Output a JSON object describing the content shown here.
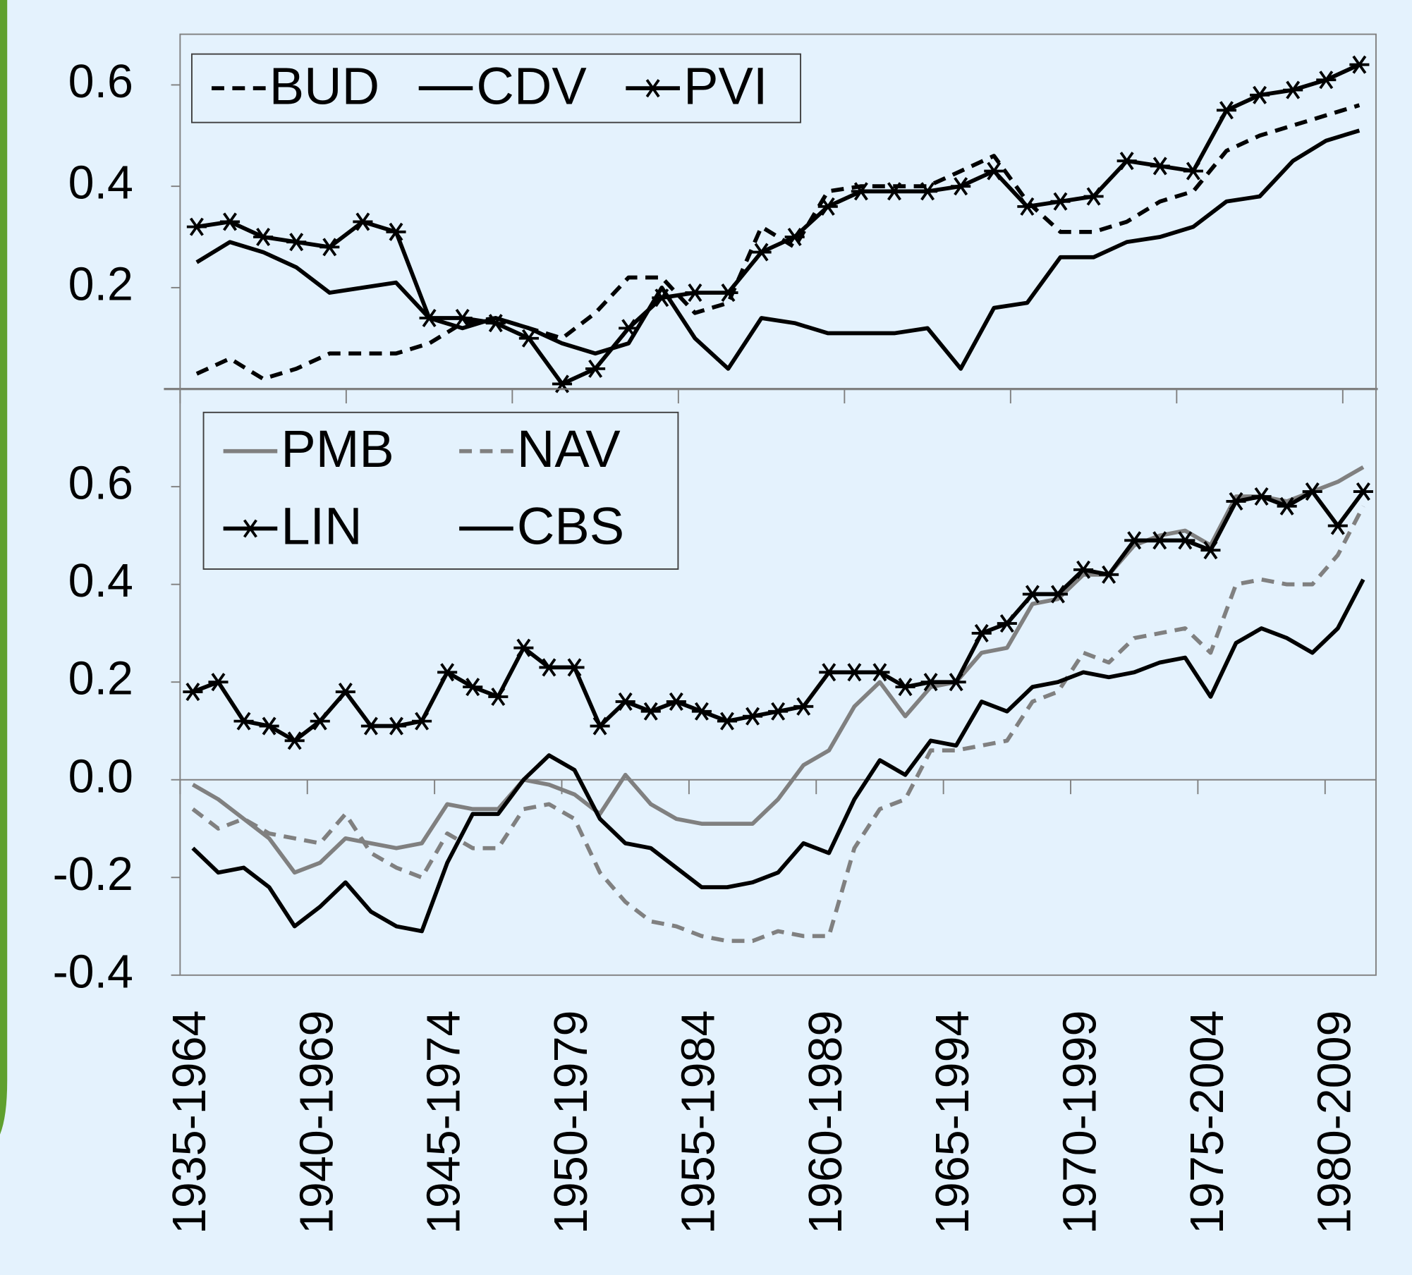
{
  "chart_data": [
    {
      "type": "line",
      "categories": [
        null,
        null,
        null,
        null,
        null,
        null,
        null,
        null,
        null,
        null,
        null,
        null,
        null,
        null,
        null,
        null,
        null,
        null,
        null,
        null,
        null,
        null,
        null,
        null,
        null,
        null,
        null,
        null,
        null,
        null,
        null,
        null,
        null,
        null,
        null,
        null
      ],
      "ylim": [
        0,
        0.7
      ],
      "yticks": [
        0.2,
        0.4,
        0.6
      ],
      "legend": "upper left",
      "series": [
        {
          "name": "BUD",
          "color": "#000000",
          "dash": "dashed",
          "marker": "none",
          "values": [
            0.03,
            0.06,
            0.02,
            0.04,
            0.07,
            0.07,
            0.07,
            0.09,
            0.13,
            0.14,
            0.12,
            0.1,
            0.15,
            0.22,
            0.22,
            0.15,
            0.17,
            0.32,
            0.28,
            0.39,
            0.4,
            0.4,
            0.4,
            0.43,
            0.46,
            0.37,
            0.31,
            0.31,
            0.33,
            0.37,
            0.39,
            0.47,
            0.5,
            0.52,
            0.54,
            0.56
          ]
        },
        {
          "name": "CDV",
          "color": "#000000",
          "dash": "solid",
          "marker": "none",
          "values": [
            0.25,
            0.29,
            0.27,
            0.24,
            0.19,
            0.2,
            0.21,
            0.14,
            0.12,
            0.14,
            0.12,
            0.09,
            0.07,
            0.09,
            0.2,
            0.1,
            0.04,
            0.14,
            0.13,
            0.11,
            0.11,
            0.11,
            0.12,
            0.04,
            0.16,
            0.17,
            0.26,
            0.26,
            0.29,
            0.3,
            0.32,
            0.37,
            0.38,
            0.45,
            0.49,
            0.51
          ]
        },
        {
          "name": "PVI",
          "color": "#000000",
          "dash": "solid",
          "marker": "star",
          "values": [
            0.32,
            0.33,
            0.3,
            0.29,
            0.28,
            0.33,
            0.31,
            0.14,
            0.14,
            0.13,
            0.1,
            0.01,
            0.04,
            0.12,
            0.18,
            0.19,
            0.19,
            0.27,
            0.3,
            0.36,
            0.39,
            0.39,
            0.39,
            0.4,
            0.43,
            0.36,
            0.37,
            0.38,
            0.45,
            0.44,
            0.43,
            0.55,
            0.58,
            0.59,
            0.61,
            0.64
          ]
        }
      ]
    },
    {
      "type": "line",
      "categories": [
        "1935-1964",
        null,
        null,
        null,
        null,
        "1940-1969",
        null,
        null,
        null,
        null,
        "1945-1974",
        null,
        null,
        null,
        null,
        "1950-1979",
        null,
        null,
        null,
        null,
        "1955-1984",
        null,
        null,
        null,
        null,
        "1960-1989",
        null,
        null,
        null,
        null,
        "1965-1994",
        null,
        null,
        null,
        null,
        "1970-1999",
        null,
        null,
        null,
        null,
        "1975-2004",
        null,
        null,
        null,
        null,
        "1980-2009",
        null
      ],
      "ylim": [
        -0.4,
        0.8
      ],
      "yticks": [
        -0.4,
        -0.2,
        {
          "value": 0,
          "label": "0.0"
        },
        0.2,
        0.4,
        0.6
      ],
      "grid_zero": true,
      "legend": "upper left",
      "series": [
        {
          "name": "PMB",
          "color": "#808080",
          "dash": "solid",
          "marker": "none",
          "values": [
            -0.01,
            -0.04,
            -0.08,
            -0.12,
            -0.19,
            -0.17,
            -0.12,
            -0.13,
            -0.14,
            -0.13,
            -0.05,
            -0.06,
            -0.06,
            0.0,
            -0.01,
            -0.03,
            -0.07,
            0.01,
            -0.05,
            -0.08,
            -0.09,
            -0.09,
            -0.09,
            -0.04,
            0.03,
            0.06,
            0.15,
            0.2,
            0.13,
            0.19,
            0.2,
            0.26,
            0.27,
            0.36,
            0.37,
            0.42,
            0.42,
            0.48,
            0.5,
            0.51,
            0.48,
            0.58,
            0.58,
            0.57,
            0.59,
            0.61,
            0.64
          ]
        },
        {
          "name": "NAV",
          "color": "#808080",
          "dash": "dashed",
          "marker": "none",
          "values": [
            -0.06,
            -0.1,
            -0.08,
            -0.11,
            -0.12,
            -0.13,
            -0.07,
            -0.15,
            -0.18,
            -0.2,
            -0.11,
            -0.14,
            -0.14,
            -0.06,
            -0.05,
            -0.08,
            -0.19,
            -0.25,
            -0.29,
            -0.3,
            -0.32,
            -0.33,
            -0.33,
            -0.31,
            -0.32,
            -0.32,
            -0.14,
            -0.06,
            -0.04,
            0.06,
            0.06,
            0.07,
            0.08,
            0.16,
            0.18,
            0.26,
            0.24,
            0.29,
            0.3,
            0.31,
            0.26,
            0.4,
            0.41,
            0.4,
            0.4,
            0.46,
            0.56
          ]
        },
        {
          "name": "LIN",
          "color": "#000000",
          "dash": "solid",
          "marker": "star",
          "values": [
            0.18,
            0.2,
            0.12,
            0.11,
            0.08,
            0.12,
            0.18,
            0.11,
            0.11,
            0.12,
            0.22,
            0.19,
            0.17,
            0.27,
            0.23,
            0.23,
            0.11,
            0.16,
            0.14,
            0.16,
            0.14,
            0.12,
            0.13,
            0.14,
            0.15,
            0.22,
            0.22,
            0.22,
            0.19,
            0.2,
            0.2,
            0.3,
            0.32,
            0.38,
            0.38,
            0.43,
            0.42,
            0.49,
            0.49,
            0.49,
            0.47,
            0.57,
            0.58,
            0.56,
            0.59,
            0.52,
            0.59
          ]
        },
        {
          "name": "CBS",
          "color": "#000000",
          "dash": "solid",
          "marker": "none",
          "values": [
            -0.14,
            -0.19,
            -0.18,
            -0.22,
            -0.3,
            -0.26,
            -0.21,
            -0.27,
            -0.3,
            -0.31,
            -0.17,
            -0.07,
            -0.07,
            0.0,
            0.05,
            0.02,
            -0.08,
            -0.13,
            -0.14,
            -0.18,
            -0.22,
            -0.22,
            -0.21,
            -0.19,
            -0.13,
            -0.15,
            -0.04,
            0.04,
            0.01,
            0.08,
            0.07,
            0.16,
            0.14,
            0.19,
            0.2,
            0.22,
            0.21,
            0.22,
            0.24,
            0.25,
            0.17,
            0.28,
            0.31,
            0.29,
            0.26,
            0.31,
            0.41
          ]
        }
      ]
    }
  ]
}
